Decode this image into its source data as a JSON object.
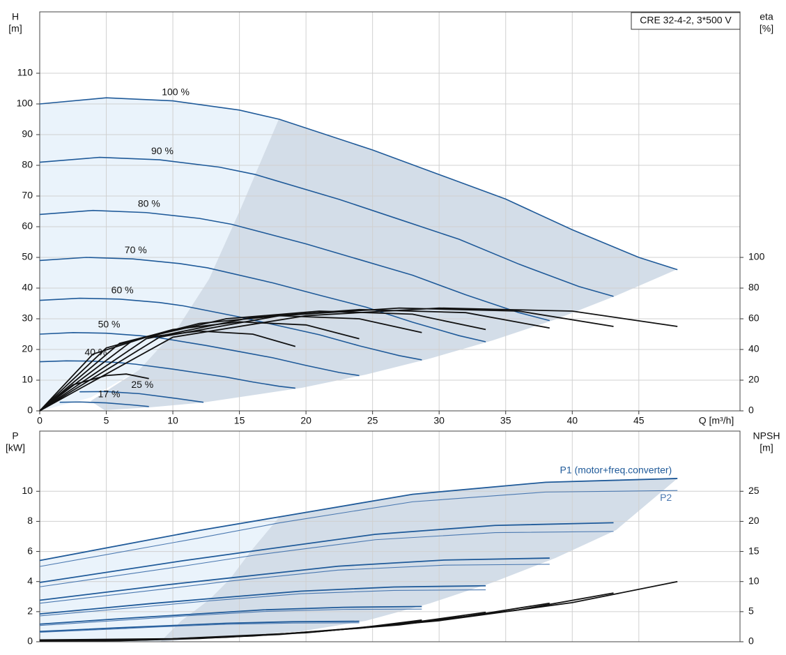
{
  "chart_data": [
    {
      "type": "line",
      "title": "CRE 32-4-2, 3*500 V",
      "ylabel": "H",
      "yunit": "[m]",
      "y2label": "eta",
      "y2unit": "[%]",
      "xlabel": "Q [m³/h]",
      "xlim": [
        0,
        52.6
      ],
      "xticks": [
        0,
        5,
        10,
        15,
        20,
        25,
        30,
        35,
        40,
        45
      ],
      "ylim": [
        0,
        130
      ],
      "yticks": [
        0,
        10,
        20,
        30,
        40,
        50,
        60,
        70,
        80,
        90,
        100,
        110
      ],
      "y2lim": [
        0,
        260
      ],
      "y2ticks": [
        0,
        20,
        40,
        60,
        80,
        100
      ],
      "grid": true,
      "series": [
        {
          "name": "100 %",
          "color": "#1f5a99",
          "width": 1.6,
          "x": [
            0,
            5,
            10,
            15,
            18,
            25,
            30,
            35,
            40,
            45,
            47.9
          ],
          "values": [
            100,
            102,
            101,
            98,
            95,
            85,
            77,
            69,
            59,
            50,
            46
          ]
        },
        {
          "name": "90 %",
          "color": "#1f5a99",
          "width": 1.6,
          "x": [
            0,
            4.5,
            9,
            13.5,
            16.2,
            22.5,
            27,
            31.5,
            36,
            40.5,
            43.1
          ],
          "values": [
            81,
            82.6,
            81.8,
            79.4,
            77,
            68.9,
            62.4,
            55.9,
            47.8,
            40.5,
            37.3
          ]
        },
        {
          "name": "80 %",
          "color": "#1f5a99",
          "width": 1.6,
          "x": [
            0,
            4,
            8,
            12,
            14.4,
            20,
            24,
            28,
            32,
            36,
            38.3
          ],
          "values": [
            64,
            65.3,
            64.6,
            62.7,
            60.8,
            54.4,
            49.3,
            44.2,
            37.8,
            32,
            29.4
          ]
        },
        {
          "name": "70 %",
          "color": "#1f5a99",
          "width": 1.6,
          "x": [
            0,
            3.5,
            7,
            10.5,
            12.6,
            17.5,
            21,
            24.5,
            28,
            31.5,
            33.5
          ],
          "values": [
            49,
            50,
            49.5,
            48,
            46.6,
            41.7,
            37.7,
            33.8,
            28.9,
            24.5,
            22.5
          ]
        },
        {
          "name": "60 %",
          "color": "#1f5a99",
          "width": 1.6,
          "x": [
            0,
            3,
            6,
            9,
            10.8,
            15,
            18,
            21,
            24,
            27,
            28.7
          ],
          "values": [
            36,
            36.7,
            36.4,
            35.3,
            34.2,
            30.6,
            27.7,
            24.8,
            21.2,
            18,
            16.6
          ]
        },
        {
          "name": "50 %",
          "color": "#1f5a99",
          "width": 1.6,
          "x": [
            0,
            2.5,
            5,
            7.5,
            9,
            12.5,
            15,
            17.5,
            20,
            22.5,
            24
          ],
          "values": [
            25,
            25.5,
            25.3,
            24.5,
            23.8,
            21.3,
            19.3,
            17.3,
            14.8,
            12.5,
            11.5
          ]
        },
        {
          "name": "40 %",
          "color": "#1f5a99",
          "width": 1.6,
          "x": [
            0,
            2,
            4,
            6,
            7.2,
            10,
            12,
            14,
            16,
            18,
            19.2
          ],
          "values": [
            16,
            16.3,
            16.2,
            15.7,
            15.2,
            13.6,
            12.3,
            11,
            9.4,
            8,
            7.4
          ]
        },
        {
          "name": "25 %",
          "color": "#1f5a99",
          "width": 1.6,
          "x": [
            3,
            5,
            7.5,
            10,
            12.3
          ],
          "values": [
            6.2,
            6.3,
            5.6,
            4.2,
            2.8
          ]
        },
        {
          "name": "17 %",
          "color": "#1f5a99",
          "width": 1.6,
          "x": [
            1.5,
            3,
            5,
            7,
            8.2
          ],
          "values": [
            2.8,
            2.9,
            2.6,
            1.9,
            1.4
          ]
        },
        {
          "axis": "y2",
          "color": "#111111",
          "width": 1.8,
          "x": [
            0,
            10,
            20,
            30,
            40,
            47.9
          ],
          "values": [
            0,
            48,
            62,
            67,
            65,
            55
          ]
        },
        {
          "axis": "y2",
          "color": "#111111",
          "width": 1.8,
          "x": [
            0,
            9,
            18,
            27,
            36,
            43.1
          ],
          "values": [
            0,
            48,
            62,
            67,
            65,
            55
          ]
        },
        {
          "axis": "y2",
          "color": "#111111",
          "width": 1.8,
          "x": [
            0,
            8,
            16,
            24,
            32,
            38.3
          ],
          "values": [
            0,
            47,
            61,
            66,
            64,
            54
          ]
        },
        {
          "axis": "y2",
          "color": "#111111",
          "width": 1.8,
          "x": [
            0,
            7,
            14,
            21,
            28,
            33.5
          ],
          "values": [
            0,
            46,
            60,
            65,
            63,
            53
          ]
        },
        {
          "axis": "y2",
          "color": "#111111",
          "width": 1.8,
          "x": [
            0,
            6,
            12,
            18,
            24,
            28.7
          ],
          "values": [
            0,
            44,
            57,
            62,
            60,
            51
          ]
        },
        {
          "axis": "y2",
          "color": "#111111",
          "width": 1.8,
          "x": [
            0,
            5,
            10,
            15,
            20,
            24
          ],
          "values": [
            0,
            41,
            53,
            58,
            56,
            47
          ]
        },
        {
          "axis": "y2",
          "color": "#111111",
          "width": 1.8,
          "x": [
            0,
            4,
            8,
            12,
            16,
            19.2
          ],
          "values": [
            0,
            37,
            48,
            52,
            50,
            42
          ]
        },
        {
          "axis": "y2",
          "color": "#111111",
          "width": 1.8,
          "x": [
            0,
            2.5,
            5,
            6.5,
            8.2
          ],
          "values": [
            0,
            17,
            23,
            24,
            21
          ]
        }
      ]
    },
    {
      "type": "line",
      "ylabel": "P",
      "yunit": "[kW]",
      "y2label": "NPSH",
      "y2unit": "[m]",
      "xlim": [
        0,
        52.6
      ],
      "ylim": [
        0,
        14
      ],
      "yticks": [
        0,
        2,
        4,
        6,
        8,
        10
      ],
      "y2lim": [
        0,
        35
      ],
      "y2ticks": [
        0,
        5,
        10,
        15,
        20,
        25
      ],
      "grid": true,
      "series": [
        {
          "name": "P1 (motor+freq.converter)",
          "color": "#1f5a99",
          "width": 1.8,
          "x": [
            0,
            12,
            18,
            28,
            38,
            47.9
          ],
          "values": [
            5.4,
            7.4,
            8.3,
            9.8,
            10.6,
            10.85
          ]
        },
        {
          "name": "P2",
          "color": "#4a78b0",
          "width": 1.1,
          "x": [
            0,
            12,
            18,
            28,
            38,
            47.9
          ],
          "values": [
            5.0,
            6.9,
            7.9,
            9.3,
            9.95,
            10.05
          ]
        },
        {
          "color": "#1f5a99",
          "width": 1.8,
          "x": [
            0,
            10.8,
            16.2,
            25.2,
            34.2,
            43.1
          ],
          "values": [
            3.94,
            5.39,
            6.05,
            7.14,
            7.73,
            7.91
          ]
        },
        {
          "color": "#4a78b0",
          "width": 1.1,
          "x": [
            0,
            10.8,
            16.2,
            25.2,
            34.2,
            43.1
          ],
          "values": [
            3.65,
            5.03,
            5.76,
            6.78,
            7.25,
            7.33
          ]
        },
        {
          "color": "#1f5a99",
          "width": 1.8,
          "x": [
            0,
            9.6,
            14.4,
            22.4,
            30.4,
            38.3
          ],
          "values": [
            2.76,
            3.79,
            4.25,
            5.02,
            5.43,
            5.56
          ]
        },
        {
          "color": "#4a78b0",
          "width": 1.1,
          "x": [
            0,
            9.6,
            14.4,
            22.4,
            30.4,
            38.3
          ],
          "values": [
            2.56,
            3.53,
            4.04,
            4.76,
            5.09,
            5.15
          ]
        },
        {
          "color": "#1f5a99",
          "width": 1.8,
          "x": [
            0,
            8.4,
            12.6,
            19.6,
            26.6,
            33.5
          ],
          "values": [
            1.85,
            2.54,
            2.85,
            3.36,
            3.64,
            3.72
          ]
        },
        {
          "color": "#4a78b0",
          "width": 1.1,
          "x": [
            0,
            8.4,
            12.6,
            19.6,
            26.6,
            33.5
          ],
          "values": [
            1.72,
            2.37,
            2.71,
            3.19,
            3.41,
            3.45
          ]
        },
        {
          "color": "#1f5a99",
          "width": 1.8,
          "x": [
            0,
            7.2,
            10.8,
            16.8,
            22.8,
            28.7
          ],
          "values": [
            1.17,
            1.6,
            1.79,
            2.12,
            2.29,
            2.34
          ]
        },
        {
          "color": "#4a78b0",
          "width": 1.1,
          "x": [
            0,
            7.2,
            10.8,
            16.8,
            22.8,
            28.7
          ],
          "values": [
            1.08,
            1.49,
            1.71,
            2.01,
            2.15,
            2.17
          ]
        },
        {
          "color": "#1f5a99",
          "width": 1.8,
          "x": [
            0,
            6,
            9,
            14,
            19,
            24
          ],
          "values": [
            0.68,
            0.93,
            1.04,
            1.23,
            1.33,
            1.36
          ]
        },
        {
          "color": "#4a78b0",
          "width": 1.1,
          "x": [
            0,
            6,
            9,
            14,
            19,
            24
          ],
          "values": [
            0.63,
            0.86,
            0.99,
            1.16,
            1.24,
            1.26
          ]
        },
        {
          "axis": "y2",
          "color": "#111111",
          "width": 1.8,
          "x": [
            0,
            10,
            20,
            30,
            40,
            47.9
          ],
          "values": [
            0.3,
            0.5,
            1.5,
            3.5,
            6.5,
            10
          ]
        },
        {
          "axis": "y2",
          "color": "#111111",
          "width": 1.8,
          "x": [
            0,
            9,
            18,
            27,
            36,
            43.1
          ],
          "values": [
            0.24,
            0.4,
            1.2,
            2.8,
            5.3,
            8.1
          ]
        },
        {
          "axis": "y2",
          "color": "#111111",
          "width": 1.8,
          "x": [
            0,
            8,
            16,
            24,
            32,
            38.3
          ],
          "values": [
            0.19,
            0.32,
            0.96,
            2.24,
            4.2,
            6.4
          ]
        },
        {
          "axis": "y2",
          "color": "#111111",
          "width": 1.8,
          "x": [
            0,
            7,
            14,
            21,
            28,
            33.5
          ],
          "values": [
            0.15,
            0.25,
            0.74,
            1.7,
            3.2,
            4.9
          ]
        },
        {
          "axis": "y2",
          "color": "#111111",
          "width": 1.8,
          "x": [
            0,
            6,
            12,
            18,
            24,
            28.7
          ],
          "values": [
            0.11,
            0.18,
            0.54,
            1.26,
            2.3,
            3.6
          ]
        }
      ]
    }
  ]
}
